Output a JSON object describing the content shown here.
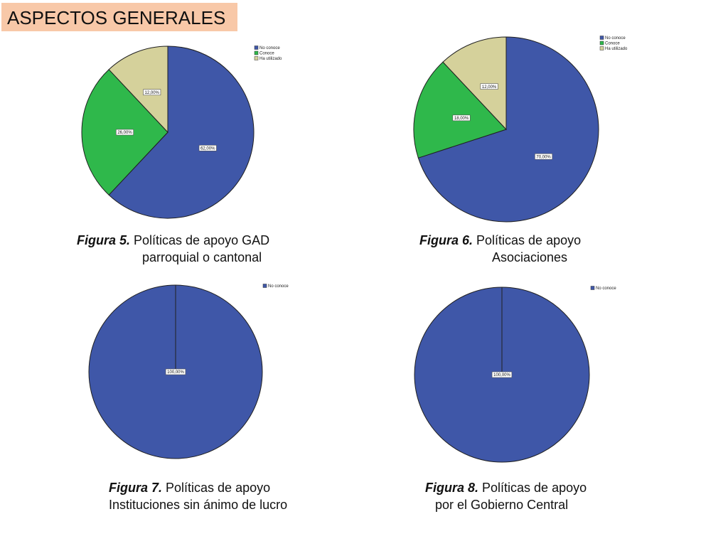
{
  "header": {
    "title": "ASPECTOS GENERALES"
  },
  "colors": {
    "No conoce": "#3f57a8",
    "Conoce": "#2fb84b",
    "Ha utilizado": "#d5d19b"
  },
  "captions": [
    {
      "fig": "Figura 5.",
      "line1": " Políticas de apoyo GAD",
      "line2": "parroquial o cantonal"
    },
    {
      "fig": "Figura 6.",
      "line1": " Políticas de apoyo",
      "line2": "Asociaciones"
    },
    {
      "fig": "Figura 7.",
      "line1": " Políticas de apoyo",
      "line2": "Instituciones sin ánimo de lucro"
    },
    {
      "fig": "Figura 8.",
      "line1": " Políticas de apoyo",
      "line2": "por el Gobierno Central"
    }
  ],
  "chart_data": [
    {
      "type": "pie",
      "legend": [
        "No conoce",
        "Conoce",
        "Ha utilizado"
      ],
      "legend_position": "top-right",
      "slices": [
        {
          "name": "No conoce",
          "value": 62,
          "label": "62,00%"
        },
        {
          "name": "Conoce",
          "value": 26,
          "label": "26,00%"
        },
        {
          "name": "Ha utilizado",
          "value": 12,
          "label": "12,00%"
        }
      ]
    },
    {
      "type": "pie",
      "legend": [
        "No conoce",
        "Conoce",
        "Ha utilizado"
      ],
      "legend_position": "top-right",
      "slices": [
        {
          "name": "No conoce",
          "value": 70,
          "label": "70,00%"
        },
        {
          "name": "Conoce",
          "value": 18,
          "label": "18,00%"
        },
        {
          "name": "Ha utilizado",
          "value": 12,
          "label": "12,00%"
        }
      ]
    },
    {
      "type": "pie",
      "legend": [
        "No conoce"
      ],
      "legend_position": "top-right",
      "slices": [
        {
          "name": "No conoce",
          "value": 100,
          "label": "100,00%"
        }
      ]
    },
    {
      "type": "pie",
      "legend": [
        "No conoce"
      ],
      "legend_position": "top-right",
      "slices": [
        {
          "name": "No conoce",
          "value": 100,
          "label": "100,00%"
        }
      ]
    }
  ]
}
